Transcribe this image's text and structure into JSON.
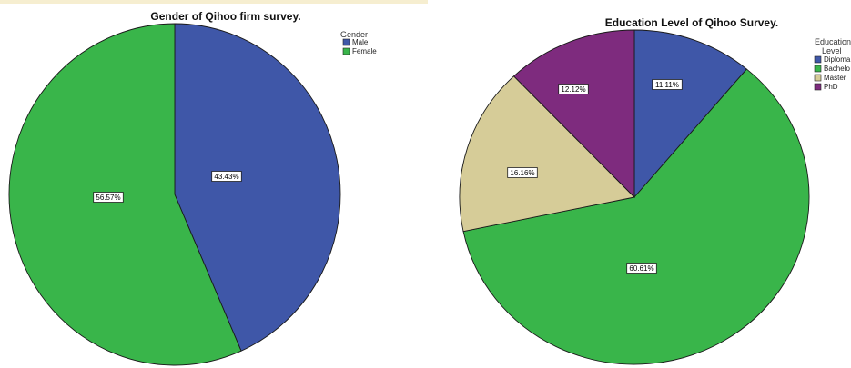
{
  "chart_data": [
    {
      "type": "pie",
      "title": "Gender of Qihoo firm survey.",
      "legend_title": "Gender",
      "legend_position": "top-right",
      "categories": [
        "Male",
        "Female"
      ],
      "values": [
        43.43,
        56.57
      ],
      "labels": [
        "43.43%",
        "56.57%"
      ],
      "colors": [
        "#3F57A8",
        "#39B54A"
      ],
      "start": "12 o'clock, clockwise"
    },
    {
      "type": "pie",
      "title": "Education Level of Qihoo Survey.",
      "legend_title": "Education Level",
      "legend_position": "top-right",
      "categories": [
        "Diploma",
        "Bachelor",
        "Master",
        "PhD"
      ],
      "legend_labels_visible": [
        "Diploma",
        "Bachelo",
        "Master",
        "PhD"
      ],
      "values": [
        11.11,
        60.61,
        16.16,
        12.12
      ],
      "labels": [
        "11.11%",
        "60.61%",
        "16.16%",
        "12.12%"
      ],
      "colors": [
        "#3F57A8",
        "#39B54A",
        "#D6CC98",
        "#7E2B7E"
      ],
      "start": "12 o'clock, clockwise"
    }
  ]
}
